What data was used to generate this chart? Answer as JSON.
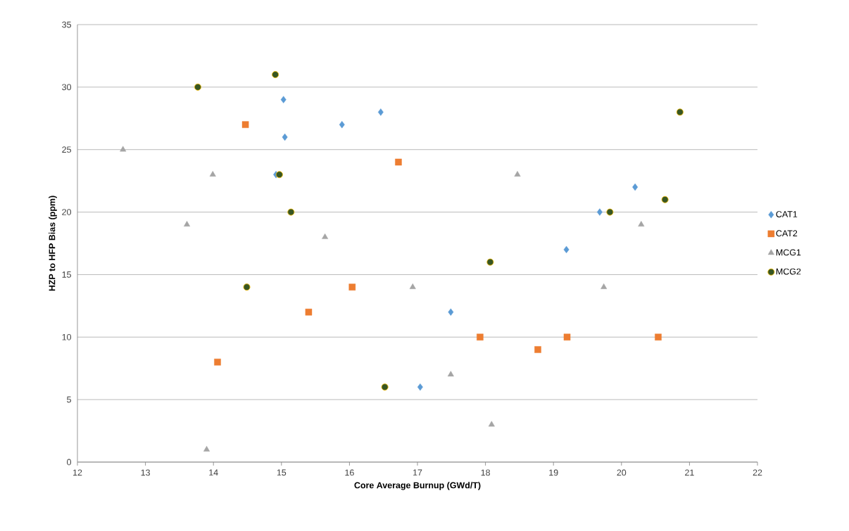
{
  "chart_data": {
    "type": "scatter",
    "xlabel": "Core Average Burnup (GWd/T)",
    "ylabel": "HZP to HFP Bias (ppm)",
    "xlim": [
      12,
      22
    ],
    "xticks": [
      12,
      13,
      14,
      15,
      16,
      17,
      18,
      19,
      20,
      21,
      22
    ],
    "ylim": [
      0,
      35
    ],
    "yticks": [
      0,
      5,
      10,
      15,
      20,
      25,
      30,
      35
    ],
    "grid": "y",
    "legend": "right",
    "series": [
      {
        "name": "CAT1",
        "color": "#5b9bd5",
        "marker": "diamond",
        "x": [
          15.03,
          15.05,
          14.92,
          15.89,
          16.46,
          17.49,
          17.04,
          19.19,
          19.68,
          20.2
        ],
        "values": [
          29,
          26,
          23,
          27,
          28,
          12,
          6,
          17,
          20,
          22
        ]
      },
      {
        "name": "CAT2",
        "color": "#ed7d31",
        "marker": "square",
        "x": [
          14.47,
          14.06,
          15.4,
          16.04,
          16.72,
          17.92,
          18.77,
          19.2,
          20.54
        ],
        "values": [
          27,
          8,
          12,
          14,
          24,
          10,
          9,
          10,
          10
        ]
      },
      {
        "name": "MCG1",
        "color": "#a5a5a5",
        "marker": "triangle",
        "x": [
          12.67,
          13.99,
          13.61,
          13.9,
          15.64,
          16.93,
          17.49,
          18.09,
          18.47,
          19.74,
          20.29
        ],
        "values": [
          25,
          23,
          19,
          1,
          18,
          14,
          7,
          3,
          23,
          14,
          19
        ]
      },
      {
        "name": "MCG2",
        "color": "#375623",
        "marker": "circle",
        "x": [
          13.77,
          14.91,
          14.97,
          15.14,
          14.49,
          16.52,
          18.07,
          19.83,
          20.64,
          20.86
        ],
        "values": [
          30,
          31,
          23,
          20,
          14,
          6,
          16,
          20,
          21,
          28
        ]
      }
    ]
  }
}
